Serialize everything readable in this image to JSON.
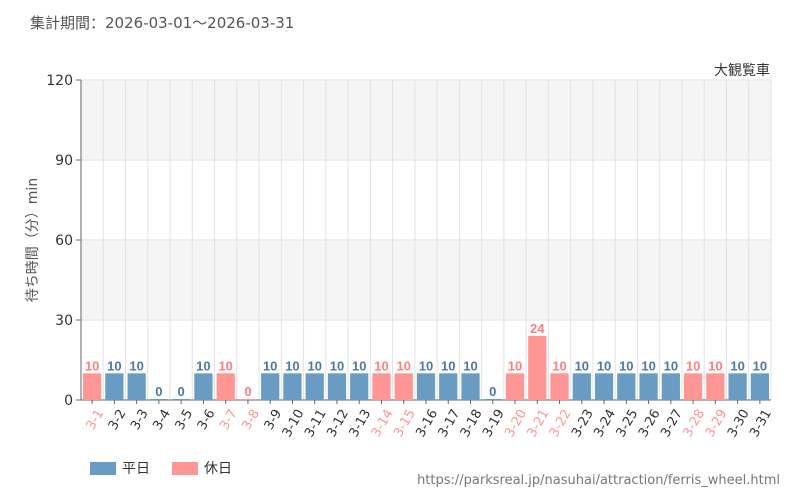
{
  "header": {
    "period_label": "集計期間：2026-03-01～2026-03-31",
    "attraction": "大観覧車"
  },
  "footer": {
    "source_url": "https://parksreal.jp/nasuhai/attraction/ferris_wheel.html"
  },
  "colors": {
    "weekday": "#6a9bc3",
    "holiday": "#ff9696",
    "weekday_label": "#4a78a8",
    "holiday_label": "#ff7f7f",
    "band": "#f5f5f5",
    "grid": "#e2e2e2"
  },
  "chart_data": {
    "type": "bar",
    "title": "",
    "xlabel": "",
    "ylabel": "待ち時間（分）min",
    "ylim": [
      0,
      120
    ],
    "yticks": [
      0,
      30,
      60,
      90,
      120
    ],
    "grid": true,
    "legend_position": "bottom-left",
    "categories": [
      "3-1",
      "3-2",
      "3-3",
      "3-4",
      "3-5",
      "3-6",
      "3-7",
      "3-8",
      "3-9",
      "3-10",
      "3-11",
      "3-12",
      "3-13",
      "3-14",
      "3-15",
      "3-16",
      "3-17",
      "3-18",
      "3-19",
      "3-20",
      "3-21",
      "3-22",
      "3-23",
      "3-24",
      "3-25",
      "3-26",
      "3-27",
      "3-28",
      "3-29",
      "3-30",
      "3-31"
    ],
    "values": [
      10,
      10,
      10,
      0,
      0,
      10,
      10,
      0,
      10,
      10,
      10,
      10,
      10,
      10,
      10,
      10,
      10,
      10,
      0,
      10,
      24,
      10,
      10,
      10,
      10,
      10,
      10,
      10,
      10,
      10,
      10
    ],
    "day_type": [
      "holiday",
      "weekday",
      "weekday",
      "weekday",
      "weekday",
      "weekday",
      "holiday",
      "holiday",
      "weekday",
      "weekday",
      "weekday",
      "weekday",
      "weekday",
      "holiday",
      "holiday",
      "weekday",
      "weekday",
      "weekday",
      "weekday",
      "holiday",
      "holiday",
      "holiday",
      "weekday",
      "weekday",
      "weekday",
      "weekday",
      "weekday",
      "holiday",
      "holiday",
      "weekday",
      "weekday"
    ],
    "series": [
      {
        "name": "平日",
        "key": "weekday"
      },
      {
        "name": "休日",
        "key": "holiday"
      }
    ]
  }
}
